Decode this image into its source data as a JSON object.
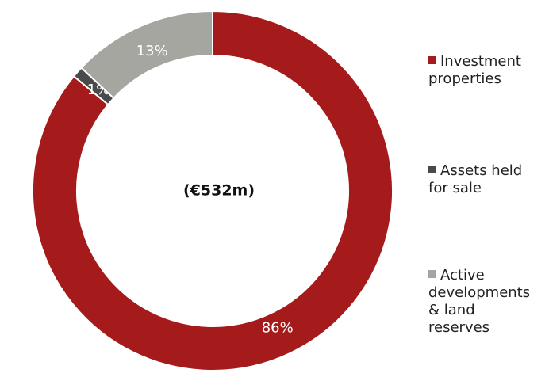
{
  "chart_data": {
    "type": "pie",
    "center_label": "(€532m)",
    "categories": [
      "Investment properties",
      "Assets held for sale",
      "Active developments & land reserves"
    ],
    "values": [
      86,
      1,
      13
    ],
    "value_labels": [
      "86%",
      "1%",
      "13%"
    ],
    "colors": [
      "#a51b1b",
      "#4a4a4a",
      "#a6a6a0"
    ],
    "legend": "right"
  }
}
